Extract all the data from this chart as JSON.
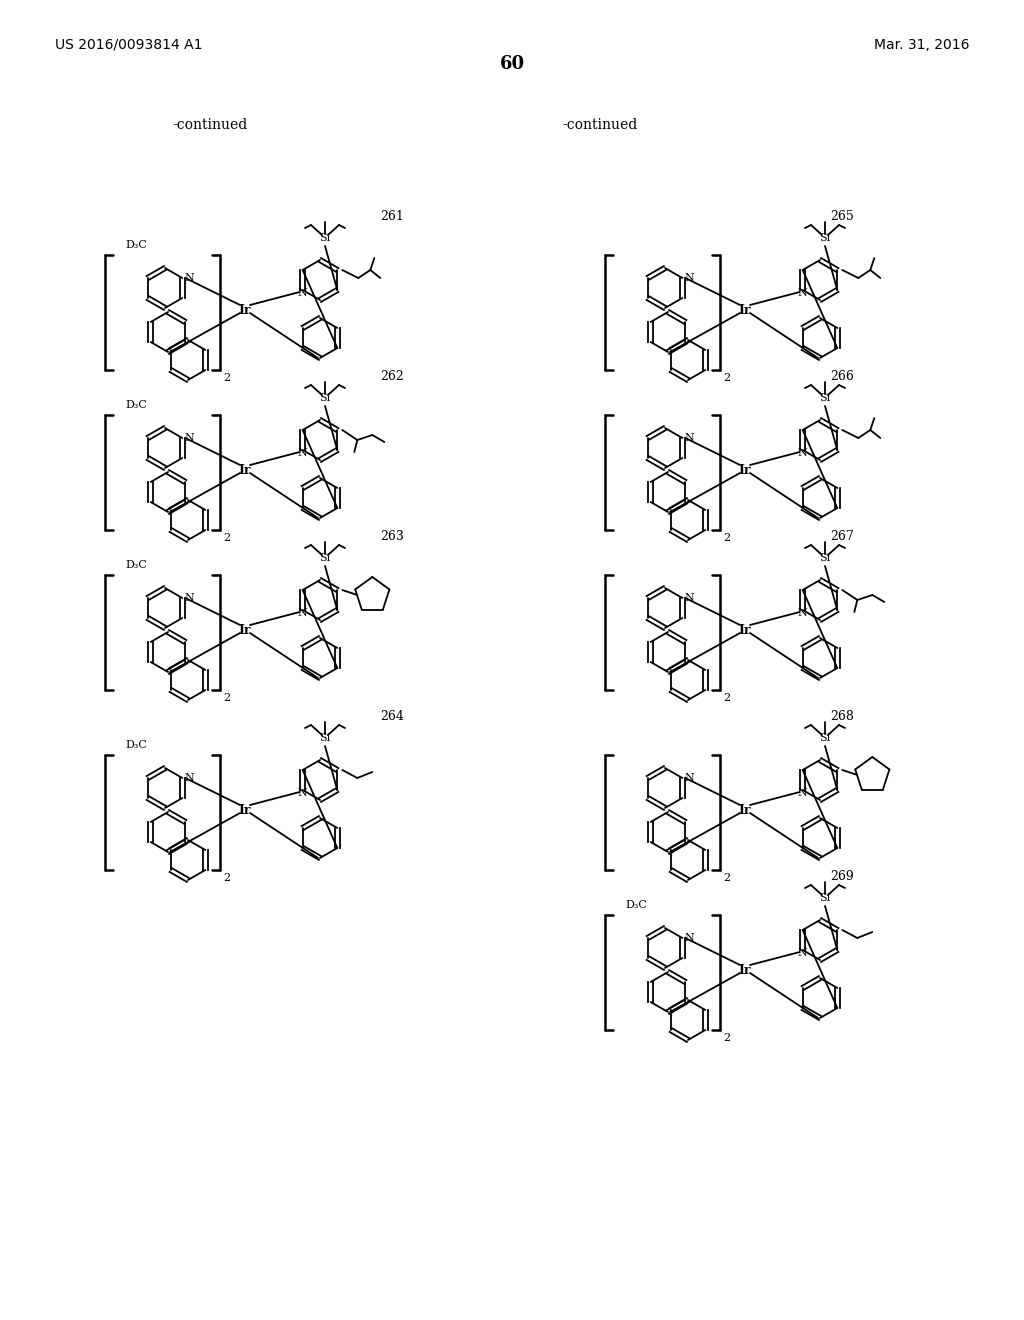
{
  "page_header_left": "US 2016/0093814 A1",
  "page_header_right": "Mar. 31, 2016",
  "page_number": "60",
  "continued_left": "-continued",
  "continued_right": "-continued",
  "bg_color": "#ffffff",
  "text_color": "#000000",
  "compound_numbers": [
    "261",
    "262",
    "263",
    "264",
    "265",
    "266",
    "267",
    "268",
    "269"
  ],
  "figsize": [
    10.24,
    13.2
  ],
  "dpi": 100
}
